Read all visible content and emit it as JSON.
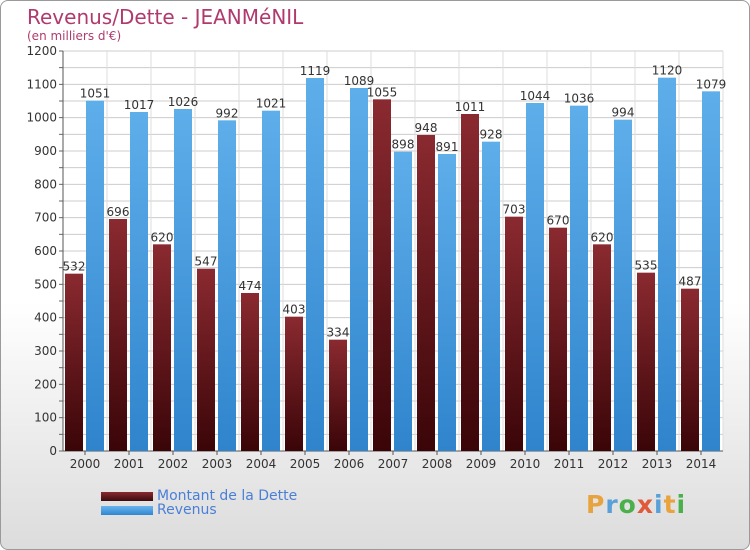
{
  "chart_data": {
    "type": "bar",
    "title": "Revenus/Dette - JEANMéNIL",
    "subtitle": "(en milliers d'€)",
    "categories": [
      "2000",
      "2001",
      "2002",
      "2003",
      "2004",
      "2005",
      "2006",
      "2007",
      "2008",
      "2009",
      "2010",
      "2011",
      "2012",
      "2013",
      "2014"
    ],
    "series": [
      {
        "name": "Montant de la Dette",
        "color": "#7a1f28",
        "values": [
          532,
          696,
          620,
          547,
          474,
          403,
          334,
          1055,
          948,
          1011,
          703,
          670,
          620,
          535,
          487
        ]
      },
      {
        "name": "Revenus",
        "color": "#4a9fe0",
        "values": [
          1051,
          1017,
          1026,
          992,
          1021,
          1119,
          1089,
          898,
          891,
          928,
          1044,
          1036,
          994,
          1120,
          1079
        ]
      }
    ],
    "ylim": [
      0,
      1200
    ],
    "yticks": [
      0,
      50,
      100,
      150,
      200,
      250,
      300,
      350,
      400,
      450,
      500,
      550,
      600,
      650,
      700,
      750,
      800,
      850,
      900,
      950,
      1000,
      1050,
      1100,
      1150,
      1200
    ],
    "grid": true,
    "legend_position": "bottom-left"
  },
  "branding": {
    "logo_text": "Proxiti",
    "logo_colors": [
      "#e8a33d",
      "#5aa0d8",
      "#4bb04b",
      "#e05a3a",
      "#5aa0d8",
      "#e8a33d",
      "#4bb04b"
    ]
  }
}
